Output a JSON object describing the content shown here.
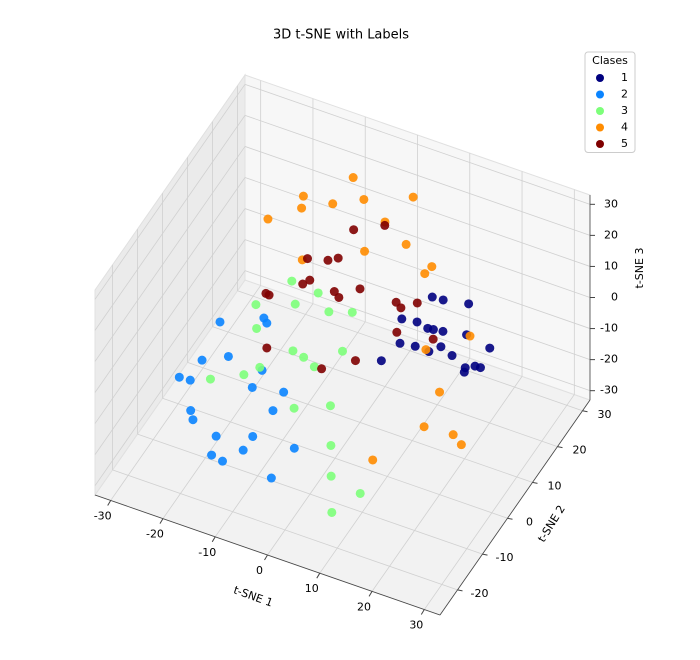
{
  "chart_data": {
    "type": "scatter3d",
    "title": "3D t-SNE with Labels",
    "xlabel": "t-SNE 1",
    "ylabel": "t-SNE 2",
    "zlabel": "t-SNE 3",
    "xlim": [
      -33,
      33
    ],
    "ylim": [
      -27,
      33
    ],
    "zlim": [
      -33,
      33
    ],
    "xticks": [
      -30,
      -20,
      -10,
      0,
      10,
      20,
      30
    ],
    "yticks": [
      -20,
      -10,
      0,
      10,
      20,
      30
    ],
    "zticks": [
      -30,
      -20,
      -10,
      0,
      10,
      20,
      30
    ],
    "grid": true,
    "legend_title": "Clases",
    "legend_position": "upper right",
    "series": [
      {
        "name": "1",
        "color": "#00007f",
        "x": [
          8,
          12,
          15,
          18,
          20,
          22,
          10,
          14,
          6,
          16,
          19,
          24,
          11,
          13,
          17,
          21,
          9,
          23,
          15,
          12
        ],
        "y": [
          10,
          12,
          8,
          15,
          5,
          10,
          18,
          14,
          6,
          20,
          12,
          8,
          3,
          16,
          2,
          18,
          14,
          4,
          11,
          7
        ],
        "z": [
          5,
          2,
          8,
          0,
          6,
          -2,
          4,
          10,
          -5,
          3,
          -8,
          1,
          7,
          -3,
          9,
          -6,
          0,
          5,
          -1,
          2
        ]
      },
      {
        "name": "2",
        "color": "#0a84ff",
        "x": [
          -25,
          -20,
          -18,
          -15,
          -12,
          -10,
          -22,
          -8,
          -5,
          -14,
          -17,
          -24,
          -6,
          -11,
          -19,
          -3,
          -13,
          -21,
          -9,
          -16
        ],
        "y": [
          -10,
          -15,
          -5,
          -18,
          -8,
          -12,
          0,
          -20,
          -15,
          2,
          -12,
          -3,
          -8,
          -22,
          -18,
          -10,
          -2,
          -14,
          -6,
          5
        ],
        "z": [
          -10,
          -15,
          -5,
          -20,
          -8,
          -18,
          -2,
          -12,
          -25,
          0,
          -22,
          -12,
          -6,
          -15,
          -8,
          -20,
          -10,
          -4,
          -16,
          -3
        ]
      },
      {
        "name": "3",
        "color": "#7dff7a",
        "x": [
          -15,
          -10,
          -5,
          0,
          -12,
          -8,
          -3,
          -18,
          -20,
          2,
          5,
          -6,
          -14,
          -1,
          8,
          12,
          -16,
          -9,
          4,
          -4
        ],
        "y": [
          0,
          5,
          8,
          3,
          -5,
          10,
          -2,
          6,
          -8,
          -6,
          -12,
          0,
          12,
          9,
          -18,
          -15,
          -3,
          2,
          -10,
          -8
        ],
        "z": [
          0,
          5,
          2,
          -2,
          -5,
          4,
          -3,
          -1,
          -10,
          -8,
          -22,
          -4,
          2,
          3,
          -25,
          -20,
          -12,
          -6,
          -15,
          -10
        ]
      },
      {
        "name": "4",
        "color": "#ff8c00",
        "x": [
          -20,
          -15,
          -10,
          -5,
          0,
          5,
          10,
          -18,
          -8,
          3,
          15,
          20,
          25,
          22,
          12,
          -12,
          -2,
          8,
          18,
          28
        ],
        "y": [
          15,
          18,
          20,
          22,
          20,
          18,
          15,
          25,
          24,
          25,
          5,
          0,
          -5,
          8,
          -10,
          12,
          16,
          22,
          -2,
          -8
        ],
        "z": [
          15,
          18,
          20,
          22,
          20,
          18,
          15,
          12,
          25,
          24,
          5,
          0,
          -5,
          10,
          -15,
          10,
          14,
          8,
          -10,
          -3
        ]
      },
      {
        "name": "5",
        "color": "#7f0000",
        "x": [
          -15,
          -10,
          -5,
          0,
          -12,
          -8,
          -3,
          5,
          -18,
          -6,
          2,
          10,
          -14,
          -1,
          8,
          -9,
          4,
          -4,
          14,
          -11
        ],
        "y": [
          5,
          8,
          12,
          10,
          15,
          18,
          6,
          14,
          10,
          20,
          4,
          12,
          2,
          22,
          8,
          16,
          18,
          3,
          10,
          12
        ],
        "z": [
          5,
          8,
          2,
          10,
          0,
          6,
          12,
          4,
          -2,
          14,
          -5,
          9,
          -8,
          16,
          3,
          7,
          -3,
          -10,
          2,
          11
        ]
      }
    ]
  }
}
